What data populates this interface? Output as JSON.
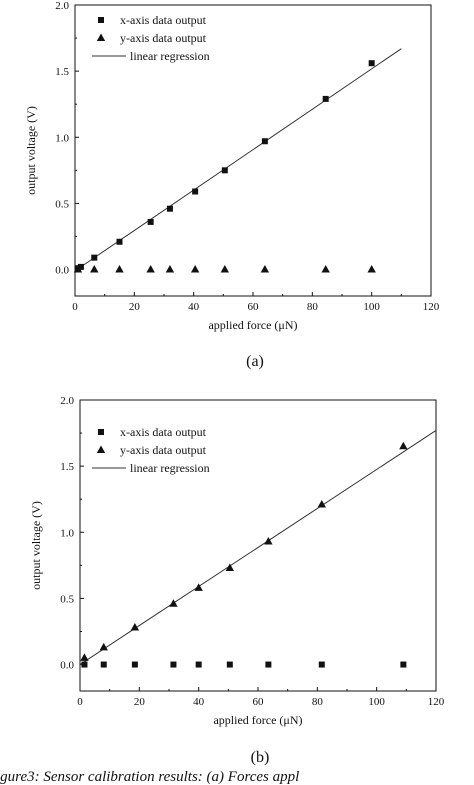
{
  "chart_data": [
    {
      "type": "scatter",
      "panel_label": "(a)",
      "xlabel": "applied force (μN)",
      "ylabel": "output voltage (V)",
      "xlim": [
        0,
        120
      ],
      "ylim": [
        -0.2,
        2.0
      ],
      "xticks": [
        0,
        20,
        40,
        60,
        80,
        100,
        120
      ],
      "yticks": [
        0.0,
        0.5,
        1.0,
        1.5,
        2.0
      ],
      "legend_position": "top-left",
      "series": [
        {
          "name": "x-axis data output",
          "marker": "square",
          "points": [
            [
              1,
              0.01
            ],
            [
              2,
              0.02
            ],
            [
              6.5,
              0.09
            ],
            [
              15,
              0.21
            ],
            [
              25.5,
              0.36
            ],
            [
              32,
              0.46
            ],
            [
              40.5,
              0.59
            ],
            [
              50.5,
              0.75
            ],
            [
              64,
              0.97
            ],
            [
              84.5,
              1.29
            ],
            [
              100,
              1.56
            ]
          ]
        },
        {
          "name": "y-axis data output",
          "marker": "triangle",
          "points": [
            [
              1,
              0.0
            ],
            [
              6.5,
              0.0
            ],
            [
              15,
              0.0
            ],
            [
              25.5,
              0.0
            ],
            [
              32,
              0.0
            ],
            [
              40.5,
              0.0
            ],
            [
              50.5,
              0.0
            ],
            [
              64,
              0.0
            ],
            [
              84.5,
              0.0
            ],
            [
              100,
              0.0
            ]
          ]
        },
        {
          "name": "linear regression",
          "type": "line",
          "points": [
            [
              0,
              -0.01
            ],
            [
              110,
              1.67
            ]
          ]
        }
      ]
    },
    {
      "type": "scatter",
      "panel_label": "(b)",
      "xlabel": "applied force (μN)",
      "ylabel": "output voltage (V)",
      "xlim": [
        0,
        120
      ],
      "ylim": [
        -0.2,
        2.0
      ],
      "xticks": [
        0,
        20,
        40,
        60,
        80,
        100,
        120
      ],
      "yticks": [
        0.0,
        0.5,
        1.0,
        1.5,
        2.0
      ],
      "legend_position": "top-left",
      "series": [
        {
          "name": "x-axis data output",
          "marker": "square",
          "points": [
            [
              1.5,
              0.0
            ],
            [
              8,
              0.0
            ],
            [
              18.5,
              0.0
            ],
            [
              31.5,
              0.0
            ],
            [
              40,
              0.0
            ],
            [
              50.5,
              0.0
            ],
            [
              63.5,
              0.0
            ],
            [
              81.5,
              0.0
            ],
            [
              109,
              0.0
            ]
          ]
        },
        {
          "name": "y-axis data output",
          "marker": "triangle",
          "points": [
            [
              1.5,
              0.05
            ],
            [
              8,
              0.13
            ],
            [
              18.5,
              0.28
            ],
            [
              31.5,
              0.46
            ],
            [
              40,
              0.58
            ],
            [
              50.5,
              0.73
            ],
            [
              63.5,
              0.93
            ],
            [
              81.5,
              1.21
            ],
            [
              109,
              1.65
            ]
          ]
        },
        {
          "name": "linear regression",
          "type": "line",
          "points": [
            [
              0,
              0.0
            ],
            [
              120,
              1.77
            ]
          ]
        }
      ]
    }
  ],
  "caption_fragment": "igure3:  Sensor calibration results: (a) Forces appl"
}
